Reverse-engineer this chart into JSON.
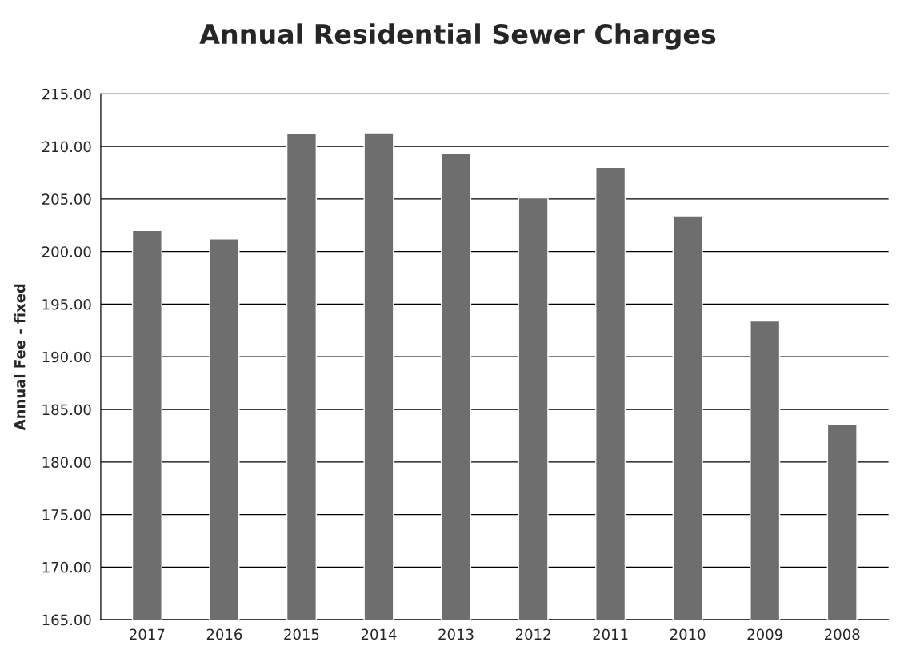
{
  "chart_data": {
    "type": "bar",
    "title": "Annual Residential Sewer Charges",
    "ylabel": "Annual Fee - fixed",
    "categories": [
      "2017",
      "2016",
      "2015",
      "2014",
      "2013",
      "2012",
      "2011",
      "2010",
      "2009",
      "2008"
    ],
    "values": [
      202.0,
      201.2,
      211.2,
      211.3,
      209.3,
      205.1,
      208.0,
      203.4,
      193.4,
      183.6
    ],
    "color": "#6e6e6e",
    "ylim": [
      165,
      215
    ],
    "yticks": [
      {
        "value": 165,
        "label": "165.00"
      },
      {
        "value": 170,
        "label": "170.00"
      },
      {
        "value": 175,
        "label": "175.00"
      },
      {
        "value": 180,
        "label": "180.00"
      },
      {
        "value": 185,
        "label": "185.00"
      },
      {
        "value": 190,
        "label": "190.00"
      },
      {
        "value": 195,
        "label": "195.00"
      },
      {
        "value": 200,
        "label": "200.00"
      },
      {
        "value": 205,
        "label": "205.00"
      },
      {
        "value": 210,
        "label": "210.00"
      },
      {
        "value": 215,
        "label": "215.00"
      }
    ],
    "grid": "y"
  }
}
